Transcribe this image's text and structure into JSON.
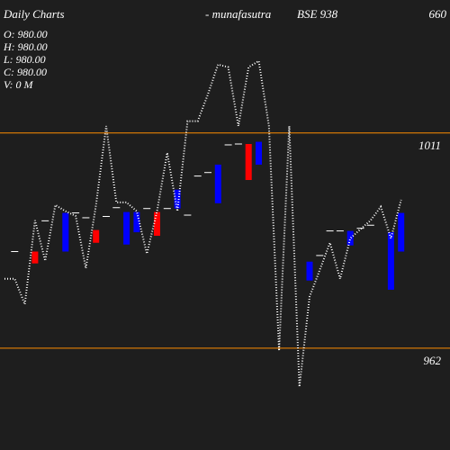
{
  "chart_data": {
    "type": "candlestick",
    "title": "Daily Charts",
    "subtitle": "- munafasutra",
    "symbol": "BSE 938",
    "corner_label": "660",
    "info": [
      "O: 980.00",
      "H: 980.00",
      "L: 980.00",
      "C: 980.00",
      "V: 0  M"
    ],
    "open": [
      null,
      984,
      null,
      984,
      991,
      null,
      984,
      992.8,
      991.7,
      988.9,
      992,
      994,
      985.6,
      988.4,
      993.8,
      993,
      993.8,
      993.8,
      992.3,
      1001.2,
      1002,
      995,
      1008.3,
      1008.5,
      1008.5,
      1003.8,
      null,
      null,
      null,
      null,
      977.4,
      983.1,
      988.7,
      988.7,
      985.4,
      989.3,
      990,
      null,
      975.3,
      984
    ],
    "close": [
      null,
      984,
      null,
      981.3,
      991,
      null,
      992.8,
      992.8,
      991.7,
      986,
      992,
      994,
      993,
      993,
      993.8,
      987.6,
      993.8,
      998.1,
      992.3,
      1001.2,
      1002,
      1003.8,
      1008.3,
      1008.5,
      1000.3,
      1009,
      null,
      null,
      null,
      null,
      981.7,
      983.1,
      988.7,
      988.7,
      988.7,
      989.3,
      990,
      null,
      988.4,
      992.8
    ],
    "line": [
      977.8,
      977.8,
      972.0,
      991.1,
      981.9,
      994.6,
      993.2,
      992.1,
      980.2,
      994.6,
      1012.6,
      995.2,
      995.2,
      993.2,
      983.5,
      993.2,
      1006.5,
      993.2,
      1013.7,
      1013.7,
      1019.8,
      1026.6,
      1026.0,
      1012.6,
      1026.0,
      1027.4,
      1012.6,
      961.4,
      1012.6,
      953.2,
      973.7,
      979.8,
      986.0,
      977.8,
      987.0,
      989.1,
      991.1,
      994.2,
      987.0,
      995.8
    ],
    "up_color": "#0000ff",
    "down_color": "#ff0000",
    "flat_color": "#ffffff",
    "line_color": "#ffffff",
    "grid_color": "#ff8c00",
    "ylim": [
      938.8,
      1041.3
    ],
    "yticks": [
      1011,
      962
    ]
  }
}
